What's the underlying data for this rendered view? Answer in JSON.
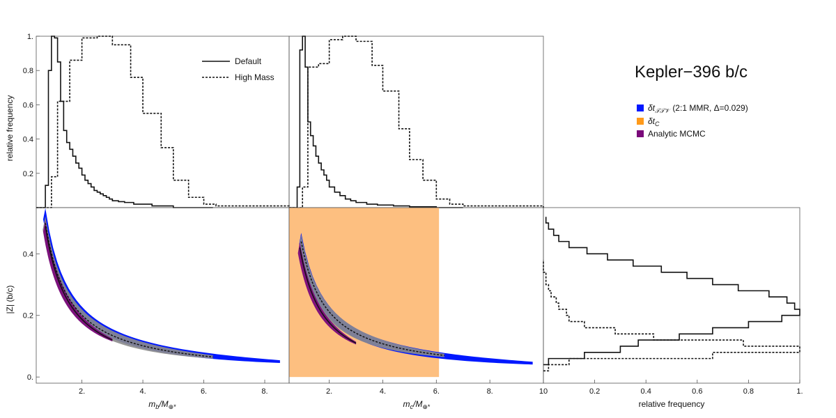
{
  "title": "Kepler−396 b/c",
  "colors": {
    "dtTTV": "#0018ff",
    "dtC": "#ff9a1a",
    "dtC_fill": "#fdbf80",
    "analytic": "#7a0a7a",
    "gray": "#8c8c8c",
    "line": "#111111"
  },
  "legend_top": {
    "default_label": "Default",
    "highmass_label": "High Mass"
  },
  "legend_right": {
    "dtTTV_sym": "δt",
    "dtTTV_sub": "𝒯𝒯𝒱",
    "dtTTV_rest": "(2:1 MMR, Δ=0.029)",
    "dtC_sym": "δt",
    "dtC_sub": "C",
    "analytic_label": "Analytic MCMC"
  },
  "chart_data": [
    {
      "panel": "hist-mb",
      "type": "histogram",
      "ylabel": "relative frequency",
      "xlim": [
        0.5,
        8.8
      ],
      "ylim": [
        0,
        1.0
      ],
      "yticks": [
        "0.2",
        "0.4",
        "0.6",
        "0.8",
        "1."
      ],
      "series": [
        {
          "name": "Default",
          "edges": [
            0.5,
            0.7,
            0.8,
            0.9,
            1.0,
            1.1,
            1.2,
            1.3,
            1.4,
            1.5,
            1.6,
            1.7,
            1.8,
            1.9,
            2.0,
            2.1,
            2.2,
            2.3,
            2.4,
            2.5,
            2.6,
            2.7,
            2.8,
            2.9,
            3.0,
            3.2,
            3.4,
            3.7,
            4.0,
            4.3,
            4.6,
            5.0,
            6.3
          ],
          "values": [
            0.0,
            0.0,
            0.13,
            0.8,
            1.0,
            0.99,
            0.85,
            0.62,
            0.45,
            0.38,
            0.34,
            0.3,
            0.26,
            0.23,
            0.19,
            0.16,
            0.14,
            0.12,
            0.1,
            0.09,
            0.08,
            0.07,
            0.06,
            0.05,
            0.04,
            0.035,
            0.03,
            0.02,
            0.02,
            0.01,
            0.01,
            0.0
          ]
        },
        {
          "name": "High Mass",
          "edges": [
            0.5,
            1.0,
            1.2,
            1.6,
            2.0,
            2.5,
            3.0,
            3.6,
            4.0,
            4.6,
            5.0,
            5.5,
            6.0,
            6.4,
            8.8
          ],
          "values": [
            0.0,
            0.18,
            0.62,
            0.86,
            0.99,
            1.0,
            0.95,
            0.76,
            0.55,
            0.35,
            0.16,
            0.06,
            0.02,
            0.01
          ]
        }
      ]
    },
    {
      "panel": "hist-mc",
      "type": "histogram",
      "xlim": [
        0.5,
        10
      ],
      "ylim": [
        0,
        1.0
      ],
      "series": [
        {
          "name": "Default",
          "edges": [
            0.5,
            0.7,
            0.8,
            0.9,
            1.0,
            1.1,
            1.2,
            1.3,
            1.4,
            1.5,
            1.6,
            1.7,
            1.8,
            1.9,
            2.0,
            2.2,
            2.4,
            2.6,
            2.8,
            3.0,
            3.4,
            3.8,
            4.4,
            5.0,
            6.0,
            7.0
          ],
          "values": [
            0.0,
            0.0,
            0.12,
            0.92,
            1.0,
            0.82,
            0.5,
            0.42,
            0.36,
            0.3,
            0.26,
            0.22,
            0.19,
            0.16,
            0.12,
            0.09,
            0.07,
            0.05,
            0.04,
            0.03,
            0.02,
            0.015,
            0.01,
            0.005,
            0.0
          ]
        },
        {
          "name": "High Mass",
          "edges": [
            0.5,
            1.0,
            1.2,
            1.6,
            2.0,
            2.5,
            3.0,
            3.6,
            4.0,
            4.6,
            5.0,
            5.5,
            6.0,
            6.5,
            7.0,
            10.0
          ],
          "values": [
            0.0,
            0.12,
            0.82,
            0.84,
            0.98,
            1.0,
            0.97,
            0.83,
            0.68,
            0.46,
            0.28,
            0.16,
            0.05,
            0.02,
            0.01
          ]
        }
      ]
    },
    {
      "panel": "scatter-mb",
      "type": "scatter",
      "xlabel_main": "m",
      "xlabel_sub": "b",
      "xlabel_den": "/M",
      "xlabel_dsub": "⊕*",
      "ylabel": "|Z| (b/c)",
      "xlim": [
        0.5,
        8.8
      ],
      "ylim": [
        -0.02,
        0.55
      ],
      "xticks": [
        "2.",
        "4.",
        "6.",
        "8."
      ],
      "xtick_values": [
        2,
        4,
        6,
        8
      ],
      "yticks": [
        "0.",
        "0.2",
        "0.4"
      ],
      "ytick_values": [
        0,
        0.2,
        0.4
      ],
      "blue_curve": {
        "x_start": 0.8,
        "x_end": 8.5,
        "y_at_start": 0.53,
        "y_at_end": 0.05
      },
      "gray_curve": {
        "x_start": 0.8,
        "x_end": 6.3,
        "y_at_start": 0.5,
        "y_at_end": 0.065
      },
      "purple_curve": {
        "x_start": 0.8,
        "x_end": 3.0,
        "y_at_start": 0.49,
        "y_at_end": 0.12
      }
    },
    {
      "panel": "scatter-mc",
      "type": "scatter",
      "xlabel_main": "m",
      "xlabel_sub": "c",
      "xlabel_den": "/M",
      "xlabel_dsub": "⊕*",
      "xlim": [
        0.5,
        10
      ],
      "ylim": [
        -0.02,
        0.55
      ],
      "xticks": [
        "2.",
        "4.",
        "6.",
        "8.",
        "10"
      ],
      "xtick_values": [
        2,
        4,
        6,
        8,
        10
      ],
      "orange_box": {
        "x0": 0.5,
        "x1": 6.1,
        "y0": 0.0,
        "y1": 0.55
      },
      "blue_curve": {
        "x_start": 0.95,
        "x_end": 9.6,
        "y_at_start": 0.45,
        "y_at_end": 0.045
      },
      "gray_curve": {
        "x_start": 0.95,
        "x_end": 6.3,
        "y_at_start": 0.44,
        "y_at_end": 0.07
      },
      "purple_curve": {
        "x_start": 0.9,
        "x_end": 3.0,
        "y_at_start": 0.42,
        "y_at_end": 0.11
      }
    },
    {
      "panel": "hist-z",
      "type": "histogram-horizontal",
      "xlabel": "relative frequency",
      "xlim": [
        0,
        1.0
      ],
      "ylim": [
        -0.02,
        0.55
      ],
      "xticks": [
        "0.2",
        "0.4",
        "0.6",
        "0.8",
        "1."
      ],
      "xtick_values": [
        0.2,
        0.4,
        0.6,
        0.8,
        1.0
      ],
      "series": [
        {
          "name": "Default",
          "edges": [
            0.04,
            0.06,
            0.08,
            0.1,
            0.12,
            0.14,
            0.16,
            0.18,
            0.2,
            0.22,
            0.24,
            0.26,
            0.28,
            0.3,
            0.32,
            0.34,
            0.36,
            0.38,
            0.4,
            0.42,
            0.44,
            0.46,
            0.48,
            0.5,
            0.52
          ],
          "values": [
            0.02,
            0.16,
            0.3,
            0.37,
            0.53,
            0.66,
            0.8,
            0.93,
            1.0,
            0.98,
            0.95,
            0.88,
            0.76,
            0.66,
            0.56,
            0.46,
            0.35,
            0.25,
            0.17,
            0.1,
            0.06,
            0.04,
            0.02,
            0.01
          ]
        },
        {
          "name": "High Mass",
          "edges": [
            0.02,
            0.04,
            0.06,
            0.08,
            0.1,
            0.12,
            0.14,
            0.16,
            0.18,
            0.2,
            0.22,
            0.24,
            0.26,
            0.28,
            0.3,
            0.32,
            0.34,
            0.36,
            0.38
          ],
          "values": [
            0.02,
            0.1,
            0.66,
            1.0,
            0.78,
            0.43,
            0.28,
            0.16,
            0.1,
            0.09,
            0.06,
            0.05,
            0.03,
            0.02,
            0.01,
            0.01,
            0.0,
            0.0
          ]
        }
      ]
    }
  ]
}
